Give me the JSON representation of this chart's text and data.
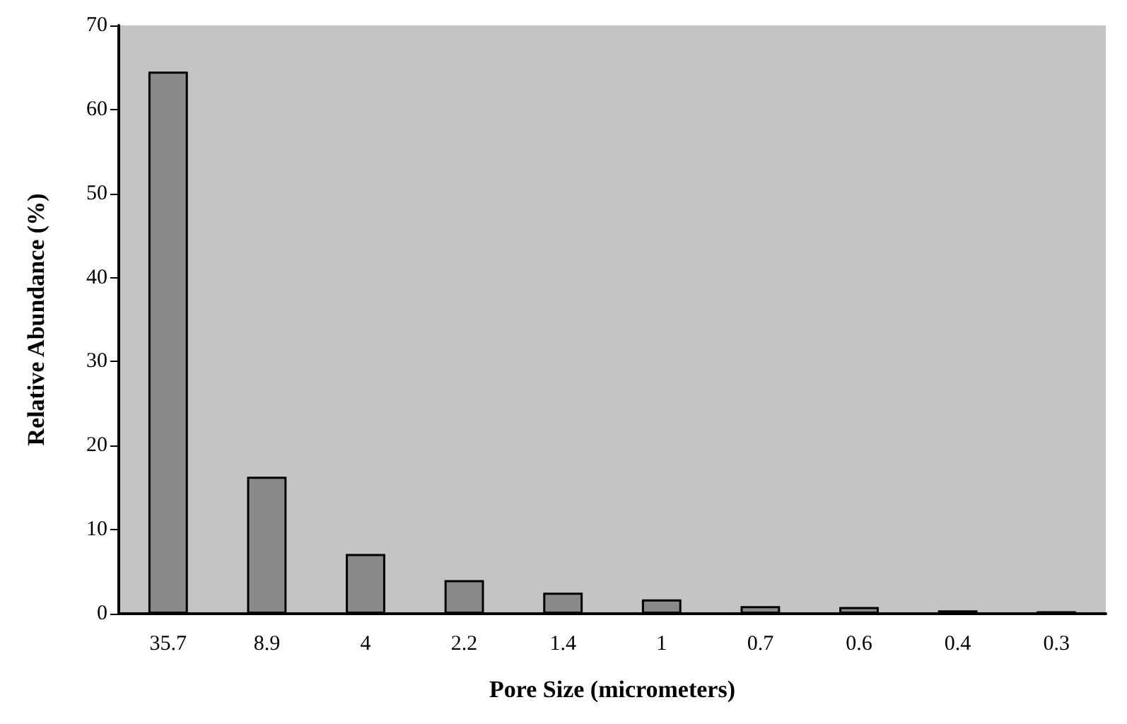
{
  "chart_data": {
    "type": "bar",
    "xlabel": "Pore Size (micrometers)",
    "ylabel": "Relative Abundance (%)",
    "categories": [
      "35.7",
      "8.9",
      "4",
      "2.2",
      "1.4",
      "1",
      "0.7",
      "0.6",
      "0.4",
      "0.3"
    ],
    "values": [
      64.5,
      16.3,
      7.1,
      4.0,
      2.5,
      1.7,
      0.9,
      0.8,
      0.4,
      0.3
    ],
    "color": "#8a8a8a",
    "ylim": [
      0,
      70
    ],
    "yticks": [
      0,
      10,
      20,
      30,
      40,
      50,
      60,
      70
    ],
    "grid": false
  }
}
